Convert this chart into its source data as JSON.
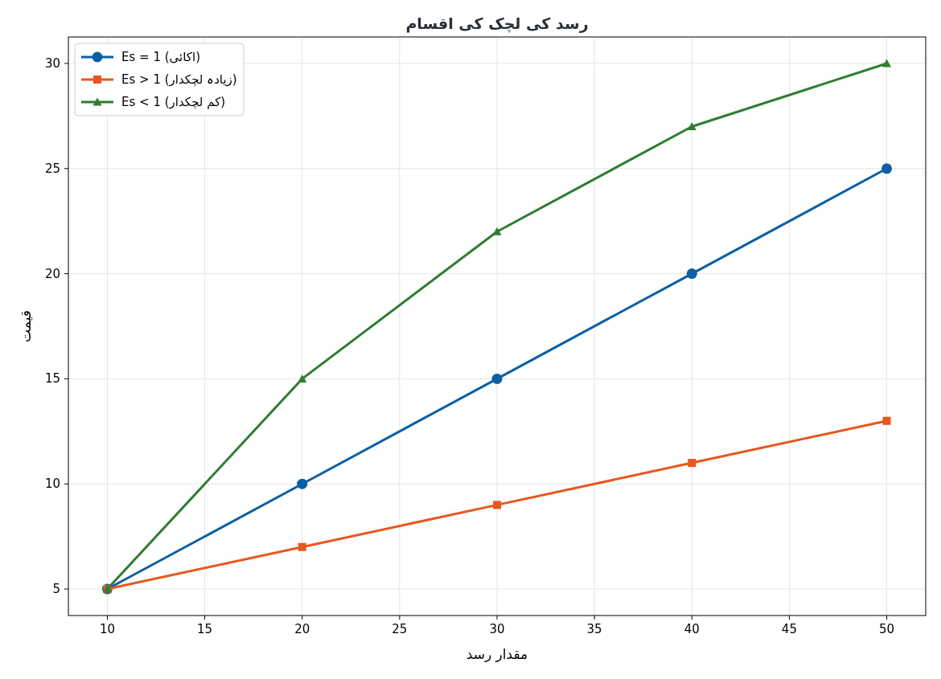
{
  "chart_data": {
    "type": "line",
    "title": "رسد کی لچک کی اقسام",
    "xlabel": "مقدار رسد",
    "ylabel": "قیمت",
    "x": [
      10,
      20,
      30,
      40,
      50
    ],
    "series": [
      {
        "name": "Es = 1 (اکائی)",
        "color": "#0b5fa5",
        "marker": "circle",
        "values": [
          5,
          10,
          15,
          20,
          25
        ]
      },
      {
        "name": "Es > 1 (زیادہ لچکدار)",
        "color": "#e8571e",
        "marker": "square",
        "values": [
          5,
          7,
          9,
          11,
          13
        ]
      },
      {
        "name": "Es < 1 (کم لچکدار)",
        "color": "#2e7d32",
        "marker": "triangle",
        "values": [
          5,
          15,
          22,
          27,
          30
        ]
      }
    ],
    "xlim": [
      8,
      52
    ],
    "xticks": [
      10,
      15,
      20,
      25,
      30,
      35,
      40,
      45,
      50
    ],
    "ylim": [
      3.74,
      31.26
    ],
    "yticks": [
      5,
      10,
      15,
      20,
      25,
      30
    ],
    "grid": true,
    "legend": "top left",
    "line_style": "solid"
  }
}
